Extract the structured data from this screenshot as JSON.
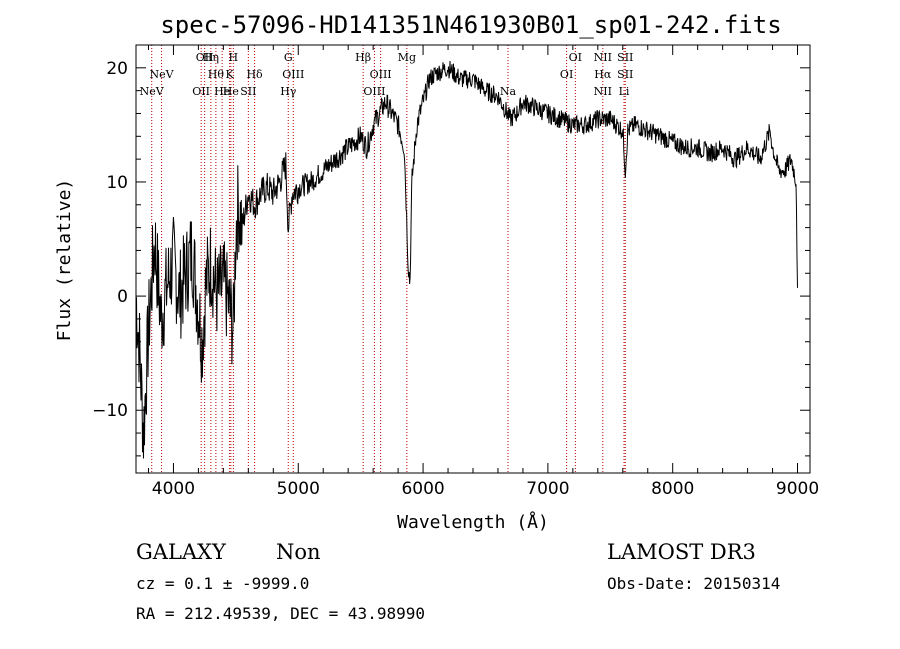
{
  "chart_data": {
    "type": "line",
    "title": "spec-57096-HD141351N461930B01_sp01-242.fits",
    "xlabel": "Wavelength (Å)",
    "ylabel": "Flux (relative)",
    "xlim": [
      3700,
      9100
    ],
    "ylim": [
      -15.5,
      22
    ],
    "xticks": [
      4000,
      5000,
      6000,
      7000,
      8000,
      9000
    ],
    "yticks": [
      -10,
      0,
      10,
      20
    ],
    "ytick_labels": [
      "−10",
      "0",
      "10",
      "20"
    ],
    "series": [
      {
        "name": "flux",
        "anchors": [
          [
            3700,
            0
          ],
          [
            3730,
            -5
          ],
          [
            3760,
            -12
          ],
          [
            3800,
            -3
          ],
          [
            3850,
            5
          ],
          [
            3900,
            -2
          ],
          [
            3950,
            1
          ],
          [
            4000,
            3
          ],
          [
            4050,
            0
          ],
          [
            4100,
            2
          ],
          [
            4150,
            4
          ],
          [
            4200,
            -1
          ],
          [
            4230,
            -4
          ],
          [
            4260,
            1
          ],
          [
            4300,
            3
          ],
          [
            4350,
            0
          ],
          [
            4400,
            1
          ],
          [
            4450,
            -1
          ],
          [
            4480,
            -3
          ],
          [
            4500,
            6
          ],
          [
            4520,
            8
          ],
          [
            4550,
            6
          ],
          [
            4600,
            9
          ],
          [
            4650,
            8
          ],
          [
            4700,
            9
          ],
          [
            4750,
            9.5
          ],
          [
            4800,
            9
          ],
          [
            4850,
            10
          ],
          [
            4900,
            11.5
          ],
          [
            4920,
            6
          ],
          [
            4950,
            9
          ],
          [
            5000,
            9.5
          ],
          [
            5100,
            10
          ],
          [
            5200,
            11
          ],
          [
            5300,
            12
          ],
          [
            5400,
            13
          ],
          [
            5500,
            14
          ],
          [
            5550,
            13
          ],
          [
            5600,
            15
          ],
          [
            5650,
            16
          ],
          [
            5700,
            17
          ],
          [
            5750,
            16
          ],
          [
            5800,
            15
          ],
          [
            5850,
            13
          ],
          [
            5880,
            3
          ],
          [
            5895,
            1
          ],
          [
            5910,
            10
          ],
          [
            5950,
            15
          ],
          [
            6000,
            17
          ],
          [
            6050,
            19
          ],
          [
            6100,
            19.5
          ],
          [
            6200,
            20
          ],
          [
            6300,
            19
          ],
          [
            6400,
            19
          ],
          [
            6500,
            18
          ],
          [
            6600,
            17.5
          ],
          [
            6700,
            15.5
          ],
          [
            6750,
            16
          ],
          [
            6800,
            17
          ],
          [
            6900,
            16.5
          ],
          [
            7000,
            16
          ],
          [
            7100,
            15.5
          ],
          [
            7200,
            15
          ],
          [
            7300,
            15
          ],
          [
            7400,
            15.5
          ],
          [
            7500,
            15.5
          ],
          [
            7550,
            15
          ],
          [
            7600,
            14.5
          ],
          [
            7620,
            11
          ],
          [
            7640,
            14.5
          ],
          [
            7700,
            15
          ],
          [
            7800,
            14.5
          ],
          [
            7900,
            14
          ],
          [
            8000,
            13.5
          ],
          [
            8100,
            13
          ],
          [
            8200,
            13
          ],
          [
            8300,
            12.5
          ],
          [
            8400,
            13
          ],
          [
            8500,
            12
          ],
          [
            8600,
            13
          ],
          [
            8700,
            12
          ],
          [
            8780,
            14.5
          ],
          [
            8800,
            13
          ],
          [
            8850,
            11
          ],
          [
            8900,
            11
          ],
          [
            8950,
            12
          ],
          [
            8990,
            10
          ],
          [
            9000,
            0
          ]
        ]
      }
    ],
    "emission_lines": [
      {
        "label": "NeV",
        "x": 3826,
        "row": 2
      },
      {
        "label": "NeV",
        "x": 3905,
        "row": 1
      },
      {
        "label": "OII",
        "x": 4250,
        "row": 0
      },
      {
        "label": "OII",
        "x": 4222,
        "row": 2
      },
      {
        "label": "Hη",
        "x": 4300,
        "row": 0
      },
      {
        "label": "Hθ",
        "x": 4340,
        "row": 1
      },
      {
        "label": "He",
        "x": 4390,
        "row": 2
      },
      {
        "label": "H",
        "x": 4480,
        "row": 0
      },
      {
        "label": "K",
        "x": 4450,
        "row": 1
      },
      {
        "label": "He",
        "x": 4460,
        "row": 2
      },
      {
        "label": "Hδ",
        "x": 4650,
        "row": 1
      },
      {
        "label": "SII",
        "x": 4600,
        "row": 2
      },
      {
        "label": "G",
        "x": 4920,
        "row": 0
      },
      {
        "label": "OIII",
        "x": 4960,
        "row": 1
      },
      {
        "label": "Hγ",
        "x": 4920,
        "row": 2
      },
      {
        "label": "Hβ",
        "x": 5520,
        "row": 0
      },
      {
        "label": "OIII",
        "x": 5660,
        "row": 1
      },
      {
        "label": "OIII",
        "x": 5610,
        "row": 2
      },
      {
        "label": "Mg",
        "x": 5870,
        "row": 0
      },
      {
        "label": "Na",
        "x": 6680,
        "row": 2
      },
      {
        "label": "OI",
        "x": 7220,
        "row": 0
      },
      {
        "label": "OI",
        "x": 7150,
        "row": 1
      },
      {
        "label": "NII",
        "x": 7440,
        "row": 0
      },
      {
        "label": "Hα",
        "x": 7440,
        "row": 1
      },
      {
        "label": "NII",
        "x": 7440,
        "row": 2
      },
      {
        "label": "SII",
        "x": 7620,
        "row": 0
      },
      {
        "label": "SII",
        "x": 7620,
        "row": 1
      },
      {
        "label": "Li",
        "x": 7610,
        "row": 2
      }
    ]
  },
  "info": {
    "class": "GALAXY",
    "subclass": "Non",
    "survey": "LAMOST DR3",
    "cz_line": "cz = 0.1 ± -9999.0",
    "obs_date": "Obs-Date: 20150314",
    "radec_line": "RA = 212.49539, DEC =  43.98990"
  }
}
